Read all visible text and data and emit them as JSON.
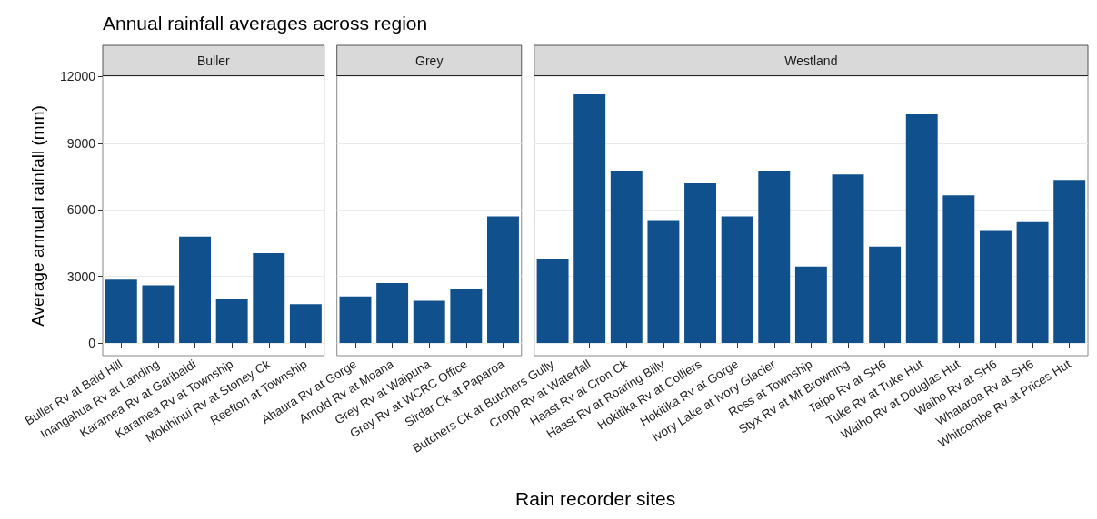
{
  "chart_data": [
    {
      "type": "bar",
      "title": "Annual rainfall averages across region",
      "subtitle": "Buller",
      "ylabel": "Average annual rainfall (mm)",
      "categories": [
        "Buller Rv at Bald Hill",
        "Inangahua Rv at Landing",
        "Karamea Rv at Garibaldi",
        "Karamea Rv at Township",
        "Mokihinui Rv at Stoney Ck",
        "Reefton at Township"
      ],
      "values": [
        2850,
        2600,
        4800,
        2000,
        4050,
        1750
      ],
      "color": "#10508c",
      "ylim": [
        -570,
        12020
      ],
      "yticks": [
        0,
        3000,
        6000,
        9000,
        12000
      ],
      "grid": true
    },
    {
      "type": "bar",
      "subtitle": "Grey",
      "categories": [
        "Ahaura Rv at Gorge",
        "Arnold Rv at Moana",
        "Grey Rv at Waipuna",
        "Grey Rv at WCRC Office",
        "Sirdar Ck at Paparoa"
      ],
      "values": [
        2100,
        2700,
        1900,
        2450,
        5700
      ],
      "color": "#10508c",
      "ylim": [
        -570,
        12020
      ],
      "yticks": [
        0,
        3000,
        6000,
        9000,
        12000
      ],
      "grid": true,
      "tick_labels": "x"
    },
    {
      "type": "bar",
      "subtitle": "Westland",
      "xlabel": "Rain recorder sites",
      "categories": [
        "Butchers Ck at Butchers Gully",
        "Cropp Rv at Waterfall",
        "Haast Rv at Cron Ck",
        "Haast Rv at Roaring Billy",
        "Hokitika Rv at Colliers",
        "Hokitika Rv at Gorge",
        "Ivory Lake at Ivory Glacier",
        "Ross at Township",
        "Styx Rv at Mt Browning",
        "Taipo Rv at SH6",
        "Tuke Rv at Tuke Hut",
        "Waiho Rv at Douglas Hut",
        "Waiho Rv at SH6",
        "Whataroa Rv at SH6",
        "Whitcombe Rv at Prices Hut"
      ],
      "values": [
        3800,
        11200,
        7750,
        5500,
        7200,
        5700,
        7750,
        3450,
        7600,
        4350,
        10300,
        6650,
        5050,
        5450,
        7350
      ],
      "color": "#10508c",
      "ylim": [
        -570,
        12020
      ],
      "yticks": [
        0,
        3000,
        6000,
        9000,
        12000
      ],
      "grid": true,
      "tick_labels": "x"
    }
  ]
}
